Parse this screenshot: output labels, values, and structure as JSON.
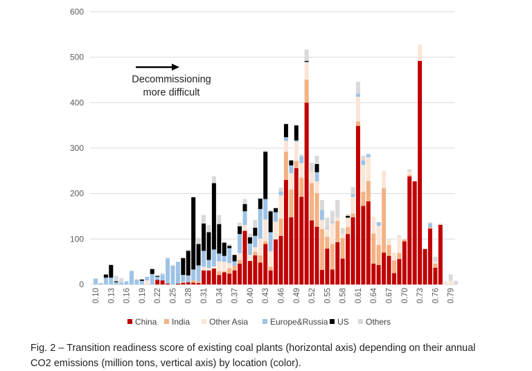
{
  "chart_data": {
    "type": "bar",
    "stacked": true,
    "title": "",
    "xlabel": "",
    "ylabel": "",
    "ylim": [
      0,
      600
    ],
    "yticks": [
      0,
      100,
      200,
      300,
      400,
      500,
      600
    ],
    "grid": true,
    "legend_position": "bottom",
    "categories": [
      "0.10",
      "0.11",
      "0.12",
      "0.13",
      "0.14",
      "0.15",
      "0.16",
      "0.17",
      "0.18",
      "0.19",
      "0.20",
      "0.21",
      "0.22",
      "0.23",
      "0.24",
      "0.25",
      "0.26",
      "0.27",
      "0.28",
      "0.29",
      "0.30",
      "0.31",
      "0.32",
      "0.33",
      "0.34",
      "0.35",
      "0.36",
      "0.37",
      "0.38",
      "0.39",
      "0.40",
      "0.41",
      "0.42",
      "0.43",
      "0.44",
      "0.45",
      "0.46",
      "0.47",
      "0.48",
      "0.49",
      "0.50",
      "0.51",
      "0.52",
      "0.53",
      "0.54",
      "0.55",
      "0.56",
      "0.57",
      "0.58",
      "0.59",
      "0.60",
      "0.61",
      "0.62",
      "0.63",
      "0.64",
      "0.65",
      "0.66",
      "0.67",
      "0.68",
      "0.69",
      "0.70",
      "0.71",
      "0.72",
      "0.73",
      "0.74",
      "0.75",
      "0.76",
      "0.77",
      "0.78",
      "0.79",
      "0.80"
    ],
    "tick_labels": [
      "0.10",
      "0.13",
      "0.16",
      "0.19",
      "0.22",
      "0.25",
      "0.28",
      "0.31",
      "0.34",
      "0.37",
      "0.40",
      "0.43",
      "0.46",
      "0.49",
      "0.52",
      "0.55",
      "0.58",
      "0.61",
      "0.64",
      "0.67",
      "0.70",
      "0.73",
      "0.76",
      "0.79"
    ],
    "series": [
      {
        "name": "China",
        "color": "#c00000",
        "values": [
          0,
          0,
          0,
          0,
          0,
          0,
          0,
          0,
          0,
          0,
          0,
          0,
          10,
          9,
          2,
          0,
          2,
          4,
          5,
          4,
          3,
          31,
          31,
          35,
          21,
          27,
          24,
          31,
          46,
          118,
          52,
          64,
          48,
          89,
          31,
          99,
          107,
          230,
          148,
          256,
          193,
          400,
          141,
          127,
          32,
          79,
          33,
          93,
          57,
          111,
          148,
          349,
          173,
          183,
          46,
          43,
          70,
          63,
          25,
          56,
          95,
          238,
          227,
          492,
          78,
          123,
          37,
          131,
          0,
          0,
          0
        ]
      },
      {
        "name": "India",
        "color": "#f4b183",
        "values": [
          0,
          0,
          0,
          0,
          0,
          0,
          0,
          0,
          0,
          0,
          0,
          0,
          0,
          0,
          0,
          0,
          0,
          0,
          0,
          5,
          4,
          0,
          0,
          0,
          8,
          2,
          12,
          10,
          8,
          0,
          0,
          8,
          16,
          6,
          8,
          0,
          38,
          62,
          61,
          16,
          42,
          51,
          82,
          74,
          90,
          26,
          56,
          47,
          45,
          15,
          8,
          10,
          31,
          45,
          66,
          44,
          142,
          24,
          28,
          13,
          4,
          3,
          0,
          0,
          0,
          3,
          9,
          0,
          0,
          0,
          0
        ]
      },
      {
        "name": "Other Asia",
        "color": "#fbe5d6",
        "values": [
          0,
          0,
          0,
          0,
          0,
          0,
          0,
          0,
          0,
          0,
          9,
          0,
          0,
          0,
          0,
          0,
          0,
          2,
          0,
          0,
          0,
          8,
          5,
          5,
          22,
          21,
          11,
          0,
          15,
          13,
          13,
          10,
          37,
          48,
          34,
          39,
          51,
          24,
          36,
          42,
          32,
          37,
          26,
          26,
          20,
          17,
          46,
          8,
          10,
          21,
          37,
          54,
          59,
          52,
          37,
          42,
          38,
          12,
          17,
          36,
          1,
          7,
          0,
          36,
          0,
          0,
          5,
          0,
          5,
          8,
          0
        ]
      },
      {
        "name": "Europe&Russia",
        "color": "#9dc3e6",
        "values": [
          13,
          3,
          15,
          15,
          5,
          4,
          7,
          30,
          11,
          8,
          8,
          23,
          7,
          13,
          55,
          41,
          48,
          15,
          15,
          24,
          35,
          35,
          18,
          37,
          17,
          13,
          33,
          10,
          42,
          30,
          25,
          25,
          65,
          45,
          42,
          21,
          8,
          8,
          17,
          3,
          15,
          2,
          0,
          20,
          22,
          2,
          3,
          0,
          0,
          0,
          5,
          7,
          10,
          7,
          0,
          8,
          0,
          0,
          0,
          0,
          0,
          0,
          0,
          0,
          0,
          8,
          0,
          0,
          0,
          0,
          0
        ]
      },
      {
        "name": "US",
        "color": "#000000",
        "values": [
          0,
          0,
          7,
          28,
          2,
          0,
          0,
          0,
          0,
          3,
          0,
          11,
          2,
          0,
          0,
          0,
          0,
          37,
          54,
          159,
          47,
          60,
          61,
          146,
          65,
          29,
          5,
          14,
          17,
          16,
          14,
          18,
          23,
          104,
          46,
          9,
          0,
          29,
          11,
          33,
          0,
          2,
          0,
          18,
          0,
          0,
          0,
          0,
          0,
          4,
          0,
          0,
          0,
          0,
          0,
          0,
          0,
          0,
          0,
          0,
          0,
          0,
          0,
          0,
          0,
          0,
          0,
          0,
          0,
          0,
          0
        ]
      },
      {
        "name": "Others",
        "color": "#d9d9d9",
        "values": [
          0,
          0,
          0,
          0,
          12,
          10,
          0,
          0,
          0,
          0,
          0,
          0,
          0,
          3,
          2,
          2,
          0,
          2,
          3,
          0,
          13,
          19,
          16,
          15,
          20,
          2,
          4,
          0,
          8,
          11,
          8,
          17,
          0,
          3,
          3,
          0,
          9,
          0,
          0,
          0,
          4,
          25,
          19,
          18,
          22,
          23,
          24,
          38,
          12,
          4,
          16,
          26,
          10,
          0,
          0,
          0,
          0,
          0,
          0,
          3,
          0,
          5,
          0,
          0,
          0,
          3,
          10,
          3,
          1,
          14,
          8
        ]
      }
    ],
    "annotations": [
      {
        "text_line1": "Decommissioning",
        "text_line2": "more difficult",
        "arrow": "right"
      }
    ]
  },
  "caption": {
    "line1": "Fig. 2 – Transition readiness score of existing coal plants (horizontal axis) depending on their annual",
    "line2": "CO2 emissions (million tons, vertical axis) by location (color)."
  }
}
